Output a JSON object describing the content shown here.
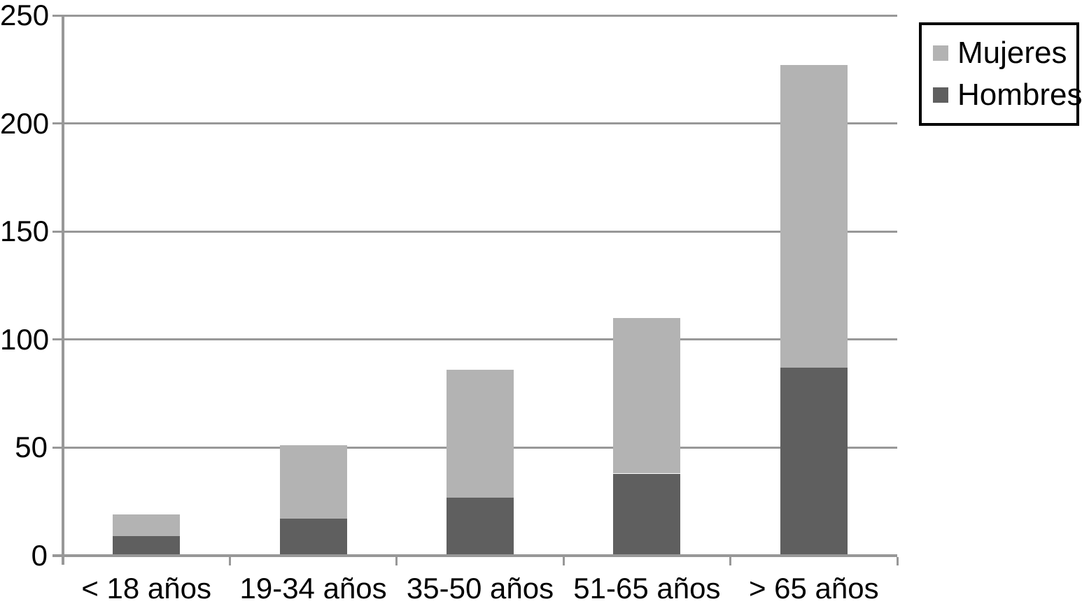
{
  "chart_data": {
    "type": "bar",
    "stacked": true,
    "title": "",
    "xlabel": "",
    "ylabel": "",
    "categories": [
      "< 18 años",
      "19-34 años",
      "35-50 años",
      "51-65 años",
      "> 65 años"
    ],
    "series": [
      {
        "name": "Hombres",
        "color": "#5f5f5f",
        "values": [
          9,
          17,
          27,
          38,
          87
        ]
      },
      {
        "name": "Mujeres",
        "color": "#b3b3b3",
        "values": [
          10,
          34,
          59,
          72,
          140
        ]
      }
    ],
    "stack_totals": [
      19,
      51,
      86,
      110,
      227
    ],
    "ylim": [
      0,
      250
    ],
    "yticks": [
      0,
      50,
      100,
      150,
      200,
      250
    ],
    "ytick_labels": [
      "0",
      "50",
      "100",
      "150",
      "200",
      "250"
    ],
    "grid": true,
    "legend_position": "top-right",
    "legend_order": [
      "Mujeres",
      "Hombres"
    ]
  },
  "colors": {
    "background": "#ffffff",
    "axis": "#989898",
    "gridline": "#989898",
    "text": "#000000",
    "legend_border": "#000000",
    "mujeres": "#b3b3b3",
    "hombres": "#5f5f5f"
  }
}
